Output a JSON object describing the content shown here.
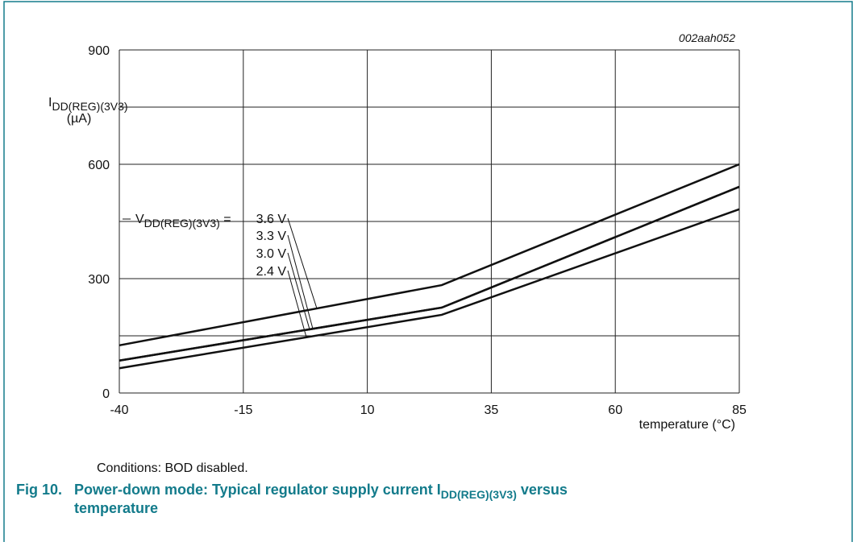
{
  "chart_data": {
    "type": "line",
    "figure_id": "002aah052",
    "ylabel": {
      "main": "I",
      "sub": "DD(REG)(3V3)",
      "unit": "(µA)"
    },
    "xlabel": "temperature (°C)",
    "x": [
      -40,
      25,
      85
    ],
    "xlim": [
      -40,
      85
    ],
    "xticks": [
      -40,
      -15,
      10,
      35,
      60,
      85
    ],
    "ylim": [
      0,
      900
    ],
    "yticks": [
      0,
      300,
      600,
      900
    ],
    "ygrid": [
      0,
      150,
      300,
      450,
      600,
      750,
      900
    ],
    "grid": true,
    "label_prefix": {
      "main": "V",
      "sub": "DD(REG)(3V3)",
      "tail": " = "
    },
    "series": [
      {
        "name": "3.6 V",
        "color": "#111111",
        "values": [
          125,
          283,
          600
        ]
      },
      {
        "name": "3.3 V",
        "color": "#111111",
        "values": [
          85,
          224,
          541
        ]
      },
      {
        "name": "3.0 V",
        "color": "#111111",
        "values": [
          85,
          224,
          541
        ]
      },
      {
        "name": "2.4 V",
        "color": "#111111",
        "values": [
          65,
          205,
          482
        ]
      }
    ],
    "conditions": "Conditions: BOD disabled.",
    "caption": {
      "number": "Fig 10.",
      "text": "Power-down mode: Typical regulator supply current I",
      "sub": "DD(REG)(3V3)",
      "tail": " versus",
      "line2": "temperature"
    }
  }
}
